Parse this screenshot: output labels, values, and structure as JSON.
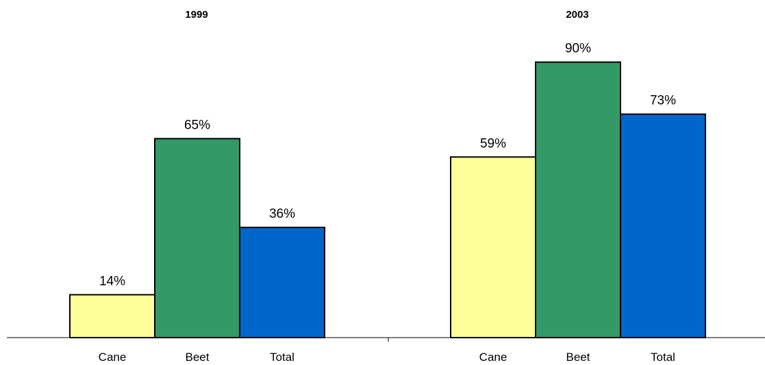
{
  "chart_data": [
    {
      "type": "bar",
      "title": "1999",
      "categories": [
        "Cane",
        "Beet",
        "Total"
      ],
      "values": [
        14,
        65,
        36
      ],
      "data_labels": [
        "14%",
        "65%",
        "36%"
      ],
      "colors": [
        "#FFFF99",
        "#339966",
        "#0066CC"
      ],
      "ylim": [
        0,
        100
      ],
      "grid": false,
      "legend": "none"
    },
    {
      "type": "bar",
      "title": "2003",
      "categories": [
        "Cane",
        "Beet",
        "Total"
      ],
      "values": [
        59,
        90,
        73
      ],
      "data_labels": [
        "59%",
        "90%",
        "73%"
      ],
      "colors": [
        "#FFFF99",
        "#339966",
        "#0066CC"
      ],
      "ylim": [
        0,
        100
      ],
      "grid": false,
      "legend": "none"
    }
  ]
}
